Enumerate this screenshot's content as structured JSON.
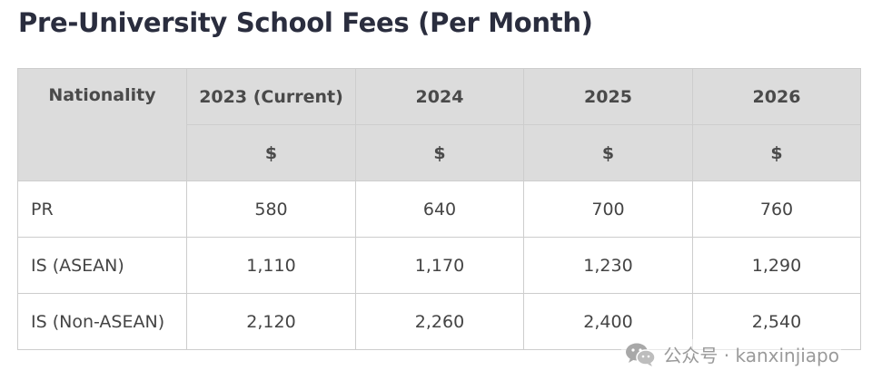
{
  "title": "Pre-University School Fees (Per Month)",
  "table": {
    "header_row1": [
      "Nationality",
      "2023 (Current)",
      "2024",
      "2025",
      "2026"
    ],
    "currency_row": [
      "$",
      "$",
      "$",
      "$"
    ],
    "rows": [
      {
        "label": "PR",
        "values": [
          "580",
          "640",
          "700",
          "760"
        ]
      },
      {
        "label": "IS (ASEAN)",
        "values": [
          "1,110",
          "1,170",
          "1,230",
          "1,290"
        ]
      },
      {
        "label": "IS (Non-ASEAN)",
        "values": [
          "2,120",
          "2,260",
          "2,400",
          "2,540"
        ]
      }
    ]
  },
  "watermark": {
    "text": "公众号 · kanxinjiapo",
    "icon": "wechat-icon"
  },
  "colors": {
    "header_bg": "#dcdcdc",
    "border": "#cdcdcd",
    "title_text": "#2a2d3e",
    "body_text": "#444444",
    "watermark_text": "#9a9a9a"
  }
}
